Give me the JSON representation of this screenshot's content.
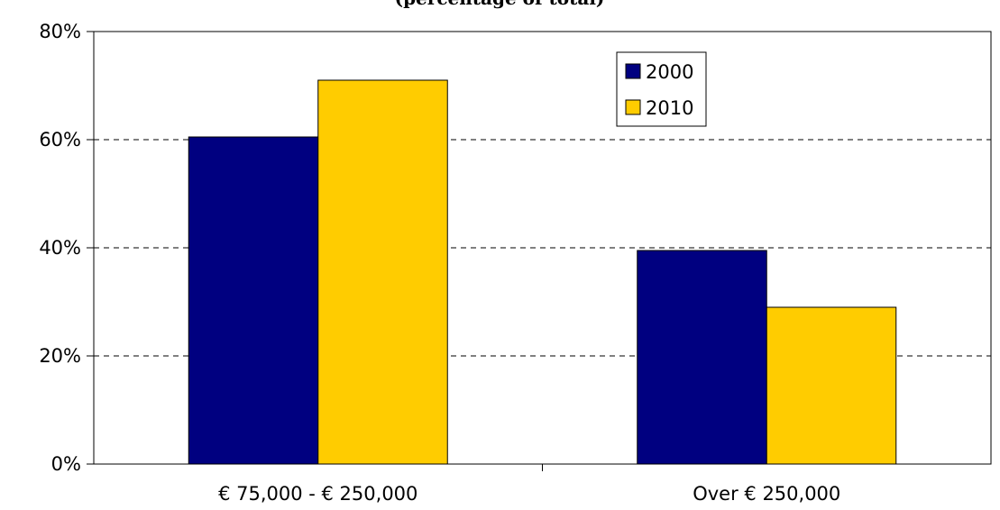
{
  "chart_data": {
    "type": "bar",
    "title": "(percentage of total)",
    "categories": [
      "€ 75,000 - € 250,000",
      "Over € 250,000"
    ],
    "series": [
      {
        "name": "2000",
        "values": [
          60.5,
          39.5
        ],
        "color": "#000080"
      },
      {
        "name": "2010",
        "values": [
          71,
          29
        ],
        "color": "#FFCC00"
      }
    ],
    "y_ticks": [
      "0%",
      "20%",
      "40%",
      "60%",
      "80%"
    ],
    "y_tick_values": [
      0,
      20,
      40,
      60,
      80
    ],
    "ylim": [
      0,
      80
    ],
    "xlabel": "",
    "ylabel": "",
    "grid": "horizontal dashed",
    "legend_position": "top-right"
  }
}
